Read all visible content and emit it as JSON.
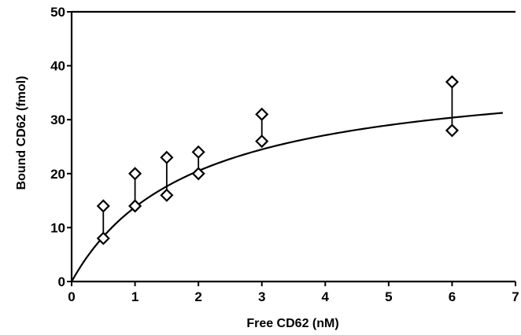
{
  "chart_data": {
    "type": "scatter",
    "title": "",
    "xlabel": "Free CD62 (nM)",
    "ylabel": "Bound CD62 (fmol)",
    "xlim": [
      0,
      7
    ],
    "ylim": [
      0,
      50
    ],
    "x_ticks": [
      "0",
      "1",
      "2",
      "3",
      "4",
      "5",
      "6",
      "7"
    ],
    "y_ticks": [
      "0",
      "10",
      "20",
      "30",
      "40",
      "50"
    ],
    "grid": false,
    "marker": "diamond",
    "series": [
      {
        "points": [
          [
            0.5,
            14
          ],
          [
            0.5,
            8
          ],
          [
            1,
            20
          ],
          [
            1,
            14
          ],
          [
            1.5,
            23
          ],
          [
            1.5,
            16
          ],
          [
            2,
            24
          ],
          [
            2,
            20
          ],
          [
            3,
            31
          ],
          [
            3,
            26
          ],
          [
            6,
            37
          ],
          [
            6,
            28
          ]
        ]
      }
    ],
    "error_ranges": [
      {
        "x": 0.5,
        "low": 8,
        "high": 14
      },
      {
        "x": 1,
        "low": 14,
        "high": 20
      },
      {
        "x": 1.5,
        "low": 16,
        "high": 23
      },
      {
        "x": 2,
        "low": 20,
        "high": 24
      },
      {
        "x": 3,
        "low": 26,
        "high": 31
      },
      {
        "x": 6,
        "low": 28,
        "high": 37
      }
    ],
    "fit_curve": {
      "model": "Bmax*x/(Kd+x)",
      "Bmax": 40,
      "Kd": 1.9,
      "x_range": [
        0,
        6.8
      ]
    }
  }
}
